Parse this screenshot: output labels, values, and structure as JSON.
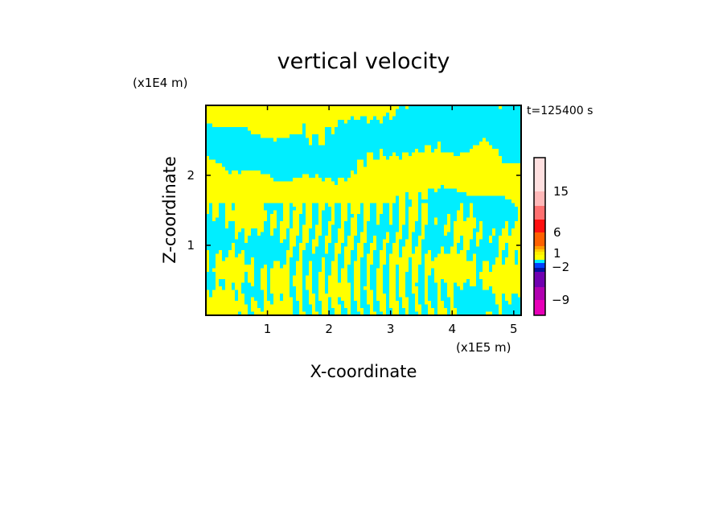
{
  "chart_data": {
    "type": "heatmap",
    "title": "vertical velocity",
    "xlabel": "X-coordinate",
    "ylabel": "Z-coordinate",
    "x_unit": "(x1E5 m)",
    "y_unit": "(x1E4 m)",
    "time_label": "t=125400 s",
    "xlim": [
      0,
      5.12
    ],
    "ylim": [
      0,
      3
    ],
    "xticks": [
      "1",
      "2",
      "3",
      "4",
      "5"
    ],
    "xtick_values": [
      1,
      2,
      3,
      4,
      5
    ],
    "yticks": [
      "1",
      "2"
    ],
    "ytick_values": [
      1,
      2
    ],
    "field_colors": {
      "positive": "#ffff00",
      "negative": "#00eeff"
    },
    "colorbar": {
      "tick_labels": [
        "15",
        "6",
        "1",
        "−2",
        "−9"
      ],
      "tick_levels": [
        15,
        6,
        1,
        -2,
        -9
      ],
      "colors": [
        "#ffe0e0",
        "#ffb8b8",
        "#ff7070",
        "#ff1010",
        "#ff6000",
        "#ff9900",
        "#ffcc00",
        "#ffee00",
        "#ffff00",
        "#00eeff",
        "#0040ff",
        "#0010a0",
        "#7000b0",
        "#b000b0",
        "#e800b8"
      ]
    }
  }
}
